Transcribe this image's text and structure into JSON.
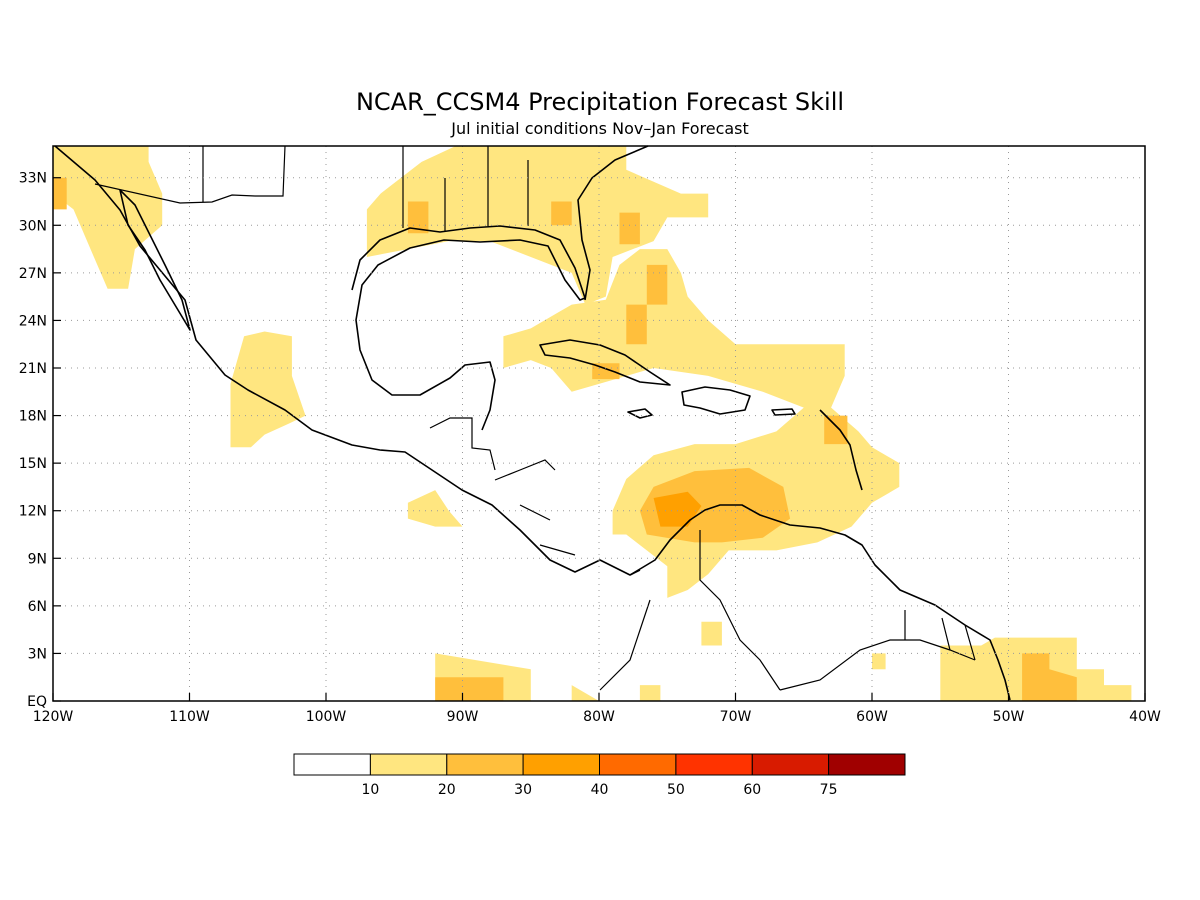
{
  "title": "NCAR_CCSM4 Precipitation Forecast Skill",
  "subtitle": "Jul initial conditions   Nov–Jan Forecast",
  "map": {
    "projection": "cylindrical equidistant",
    "lon_range": [
      -120,
      -40
    ],
    "lat_range": [
      0,
      35
    ],
    "grid": "dotted"
  },
  "x_ticks": [
    {
      "lon": -120,
      "label": "120W"
    },
    {
      "lon": -110,
      "label": "110W"
    },
    {
      "lon": -100,
      "label": "100W"
    },
    {
      "lon": -90,
      "label": "90W"
    },
    {
      "lon": -80,
      "label": "80W"
    },
    {
      "lon": -70,
      "label": "70W"
    },
    {
      "lon": -60,
      "label": "60W"
    },
    {
      "lon": -50,
      "label": "50W"
    },
    {
      "lon": -40,
      "label": "40W"
    }
  ],
  "y_ticks": [
    {
      "lat": 0,
      "label": "EQ"
    },
    {
      "lat": 3,
      "label": "3N"
    },
    {
      "lat": 6,
      "label": "6N"
    },
    {
      "lat": 9,
      "label": "9N"
    },
    {
      "lat": 12,
      "label": "12N"
    },
    {
      "lat": 15,
      "label": "15N"
    },
    {
      "lat": 18,
      "label": "18N"
    },
    {
      "lat": 21,
      "label": "21N"
    },
    {
      "lat": 24,
      "label": "24N"
    },
    {
      "lat": 27,
      "label": "27N"
    },
    {
      "lat": 30,
      "label": "30N"
    },
    {
      "lat": 33,
      "label": "33N"
    }
  ],
  "colorbar": {
    "colors": [
      "#ffffff",
      "#ffe680",
      "#ffbf3c",
      "#ffa000",
      "#ff6a00",
      "#ff3300",
      "#d81b00",
      "#a00000"
    ],
    "labels": [
      "10",
      "20",
      "30",
      "40",
      "50",
      "60",
      "75"
    ]
  },
  "skill_regions": [
    {
      "level": 1,
      "name": "baja-gulf-of-california",
      "points": [
        [
          -120,
          35
        ],
        [
          -113,
          35
        ],
        [
          -113,
          34
        ],
        [
          -112,
          32
        ],
        [
          -112,
          30
        ],
        [
          -114,
          28.5
        ],
        [
          -114.5,
          26
        ],
        [
          -116,
          26
        ],
        [
          -117,
          28
        ],
        [
          -118.5,
          31
        ],
        [
          -120,
          32
        ]
      ]
    },
    {
      "level": 2,
      "name": "baja-core",
      "points": [
        [
          -120,
          33
        ],
        [
          -119,
          33
        ],
        [
          -119,
          31
        ],
        [
          -120,
          31
        ]
      ]
    },
    {
      "level": 1,
      "name": "southwest-mexico-coast",
      "points": [
        [
          -107,
          16
        ],
        [
          -107,
          20
        ],
        [
          -106,
          23
        ],
        [
          -104.5,
          23.3
        ],
        [
          -102.5,
          23
        ],
        [
          -102.5,
          20.5
        ],
        [
          -101.5,
          18
        ],
        [
          -102.7,
          17.5
        ],
        [
          -104.5,
          16.8
        ],
        [
          -105.5,
          16
        ]
      ]
    },
    {
      "level": 1,
      "name": "texas-gulf-coast",
      "points": [
        [
          -97,
          28
        ],
        [
          -97,
          31
        ],
        [
          -96,
          32
        ],
        [
          -93,
          34
        ],
        [
          -90.5,
          35
        ],
        [
          -78,
          35
        ],
        [
          -78,
          33.5
        ],
        [
          -74,
          32
        ],
        [
          -72,
          32
        ],
        [
          -72,
          30.5
        ],
        [
          -75,
          30.5
        ],
        [
          -76,
          29
        ],
        [
          -79,
          28
        ],
        [
          -79.5,
          25.5
        ],
        [
          -81,
          25
        ],
        [
          -82,
          27
        ],
        [
          -85,
          28
        ],
        [
          -88,
          29
        ],
        [
          -91,
          29
        ],
        [
          -94,
          28.5
        ]
      ]
    },
    {
      "level": 2,
      "name": "louisiana-core",
      "points": [
        [
          -94,
          29.5
        ],
        [
          -94,
          31.5
        ],
        [
          -92.5,
          31.5
        ],
        [
          -92.5,
          29.5
        ]
      ]
    },
    {
      "level": 2,
      "name": "georgia-core",
      "points": [
        [
          -83.5,
          30
        ],
        [
          -83.5,
          31.5
        ],
        [
          -82,
          31.5
        ],
        [
          -82,
          30
        ]
      ]
    },
    {
      "level": 1,
      "name": "caribbean-main",
      "points": [
        [
          -87,
          21
        ],
        [
          -87,
          23
        ],
        [
          -85,
          23.5
        ],
        [
          -83,
          24.5
        ],
        [
          -82,
          25
        ],
        [
          -79.5,
          25.3
        ],
        [
          -78.5,
          27.5
        ],
        [
          -77,
          28.5
        ],
        [
          -75,
          28.5
        ],
        [
          -74,
          27
        ],
        [
          -73.5,
          25.5
        ],
        [
          -72,
          24
        ],
        [
          -70,
          22.5
        ],
        [
          -66,
          22.5
        ],
        [
          -62,
          22.5
        ],
        [
          -62,
          20.5
        ],
        [
          -63,
          18.5
        ],
        [
          -61,
          17
        ],
        [
          -60,
          16
        ],
        [
          -58,
          15
        ],
        [
          -58,
          13.5
        ],
        [
          -60,
          12.5
        ],
        [
          -61.5,
          11
        ],
        [
          -64,
          10
        ],
        [
          -67,
          9.5
        ],
        [
          -70.5,
          9.5
        ],
        [
          -72,
          8
        ],
        [
          -73.5,
          7
        ],
        [
          -75,
          6.5
        ],
        [
          -75,
          8.5
        ],
        [
          -76.5,
          9.5
        ],
        [
          -78,
          10.5
        ],
        [
          -79,
          10.5
        ],
        [
          -79,
          12
        ],
        [
          -78,
          14
        ],
        [
          -76,
          15.5
        ],
        [
          -73,
          16.2
        ],
        [
          -70,
          16.2
        ],
        [
          -67,
          17
        ],
        [
          -65,
          18.5
        ],
        [
          -68,
          19.5
        ],
        [
          -72,
          20.5
        ],
        [
          -76,
          21
        ],
        [
          -80,
          20
        ],
        [
          -82,
          19.5
        ],
        [
          -83.5,
          21
        ],
        [
          -85,
          21.5
        ]
      ]
    },
    {
      "level": 2,
      "name": "bahamas-core",
      "points": [
        [
          -76.5,
          25
        ],
        [
          -76.5,
          27.5
        ],
        [
          -75,
          27.5
        ],
        [
          -75,
          25
        ]
      ]
    },
    {
      "level": 2,
      "name": "florida-straits-core",
      "points": [
        [
          -78,
          22.5
        ],
        [
          -78,
          25
        ],
        [
          -76.5,
          25
        ],
        [
          -76.5,
          22.5
        ]
      ]
    },
    {
      "level": 2,
      "name": "florida-east-core",
      "points": [
        [
          -78.5,
          28.8
        ],
        [
          -78.5,
          30.8
        ],
        [
          -77,
          30.8
        ],
        [
          -77,
          28.8
        ]
      ]
    },
    {
      "level": 2,
      "name": "cuba-south-core",
      "points": [
        [
          -80.5,
          20.3
        ],
        [
          -80.5,
          21.3
        ],
        [
          -78.5,
          21.3
        ],
        [
          -78.5,
          20.3
        ]
      ]
    },
    {
      "level": 2,
      "name": "lesser-antilles-core",
      "points": [
        [
          -63.5,
          16.2
        ],
        [
          -63.5,
          18
        ],
        [
          -61.8,
          18
        ],
        [
          -61.8,
          16.2
        ]
      ]
    },
    {
      "level": 2,
      "name": "south-caribbean-core",
      "points": [
        [
          -76.5,
          10.5
        ],
        [
          -77,
          12
        ],
        [
          -76,
          13.5
        ],
        [
          -73,
          14.5
        ],
        [
          -69,
          14.7
        ],
        [
          -66.5,
          13.5
        ],
        [
          -66,
          11.5
        ],
        [
          -68,
          10.3
        ],
        [
          -71,
          10
        ],
        [
          -73,
          10
        ]
      ]
    },
    {
      "level": 3,
      "name": "colombia-coast-core",
      "points": [
        [
          -75.5,
          11
        ],
        [
          -76,
          12.8
        ],
        [
          -73.5,
          13.2
        ],
        [
          -72.5,
          12.3
        ],
        [
          -73.5,
          11
        ]
      ]
    },
    {
      "level": 1,
      "name": "guatemala-pacific",
      "points": [
        [
          -94,
          11.5
        ],
        [
          -94,
          12.5
        ],
        [
          -92,
          13.3
        ],
        [
          -91,
          12
        ],
        [
          -90,
          11
        ],
        [
          -92,
          11
        ]
      ]
    },
    {
      "level": 1,
      "name": "venezuela-interior",
      "points": [
        [
          -72.5,
          3.5
        ],
        [
          -72.5,
          5
        ],
        [
          -71,
          5
        ],
        [
          -71,
          3.5
        ]
      ]
    },
    {
      "level": 1,
      "name": "guiana-interior",
      "points": [
        [
          -60,
          2
        ],
        [
          -60,
          3
        ],
        [
          -59,
          3
        ],
        [
          -59,
          2
        ]
      ]
    },
    {
      "level": 1,
      "name": "amazon-delta",
      "points": [
        [
          -55,
          1
        ],
        [
          -55,
          3.5
        ],
        [
          -52,
          3.5
        ],
        [
          -51,
          4
        ],
        [
          -45,
          4
        ],
        [
          -45,
          2
        ],
        [
          -43,
          2
        ],
        [
          -43,
          1
        ],
        [
          -41,
          1
        ],
        [
          -41,
          0
        ],
        [
          -55,
          0
        ]
      ]
    },
    {
      "level": 2,
      "name": "amazon-delta-core",
      "points": [
        [
          -49,
          1.5
        ],
        [
          -49,
          3
        ],
        [
          -47,
          3
        ],
        [
          -47,
          2
        ],
        [
          -45,
          1.5
        ],
        [
          -45,
          0
        ],
        [
          -49,
          0
        ]
      ]
    },
    {
      "level": 1,
      "name": "pacific-equatorial-west",
      "points": [
        [
          -92,
          0
        ],
        [
          -92,
          3
        ],
        [
          -85,
          2
        ],
        [
          -85,
          0
        ]
      ]
    },
    {
      "level": 2,
      "name": "pacific-equatorial-west-core",
      "points": [
        [
          -92,
          0
        ],
        [
          -92,
          1.5
        ],
        [
          -87,
          1.5
        ],
        [
          -87,
          0
        ]
      ]
    },
    {
      "level": 1,
      "name": "pacific-ecuador-north",
      "points": [
        [
          -82,
          0
        ],
        [
          -82,
          1
        ],
        [
          -80,
          0
        ]
      ]
    },
    {
      "level": 1,
      "name": "pacific-ecuador-islet",
      "points": [
        [
          -77,
          0
        ],
        [
          -77,
          1
        ],
        [
          -75.5,
          1
        ],
        [
          -75.5,
          0
        ]
      ]
    }
  ]
}
